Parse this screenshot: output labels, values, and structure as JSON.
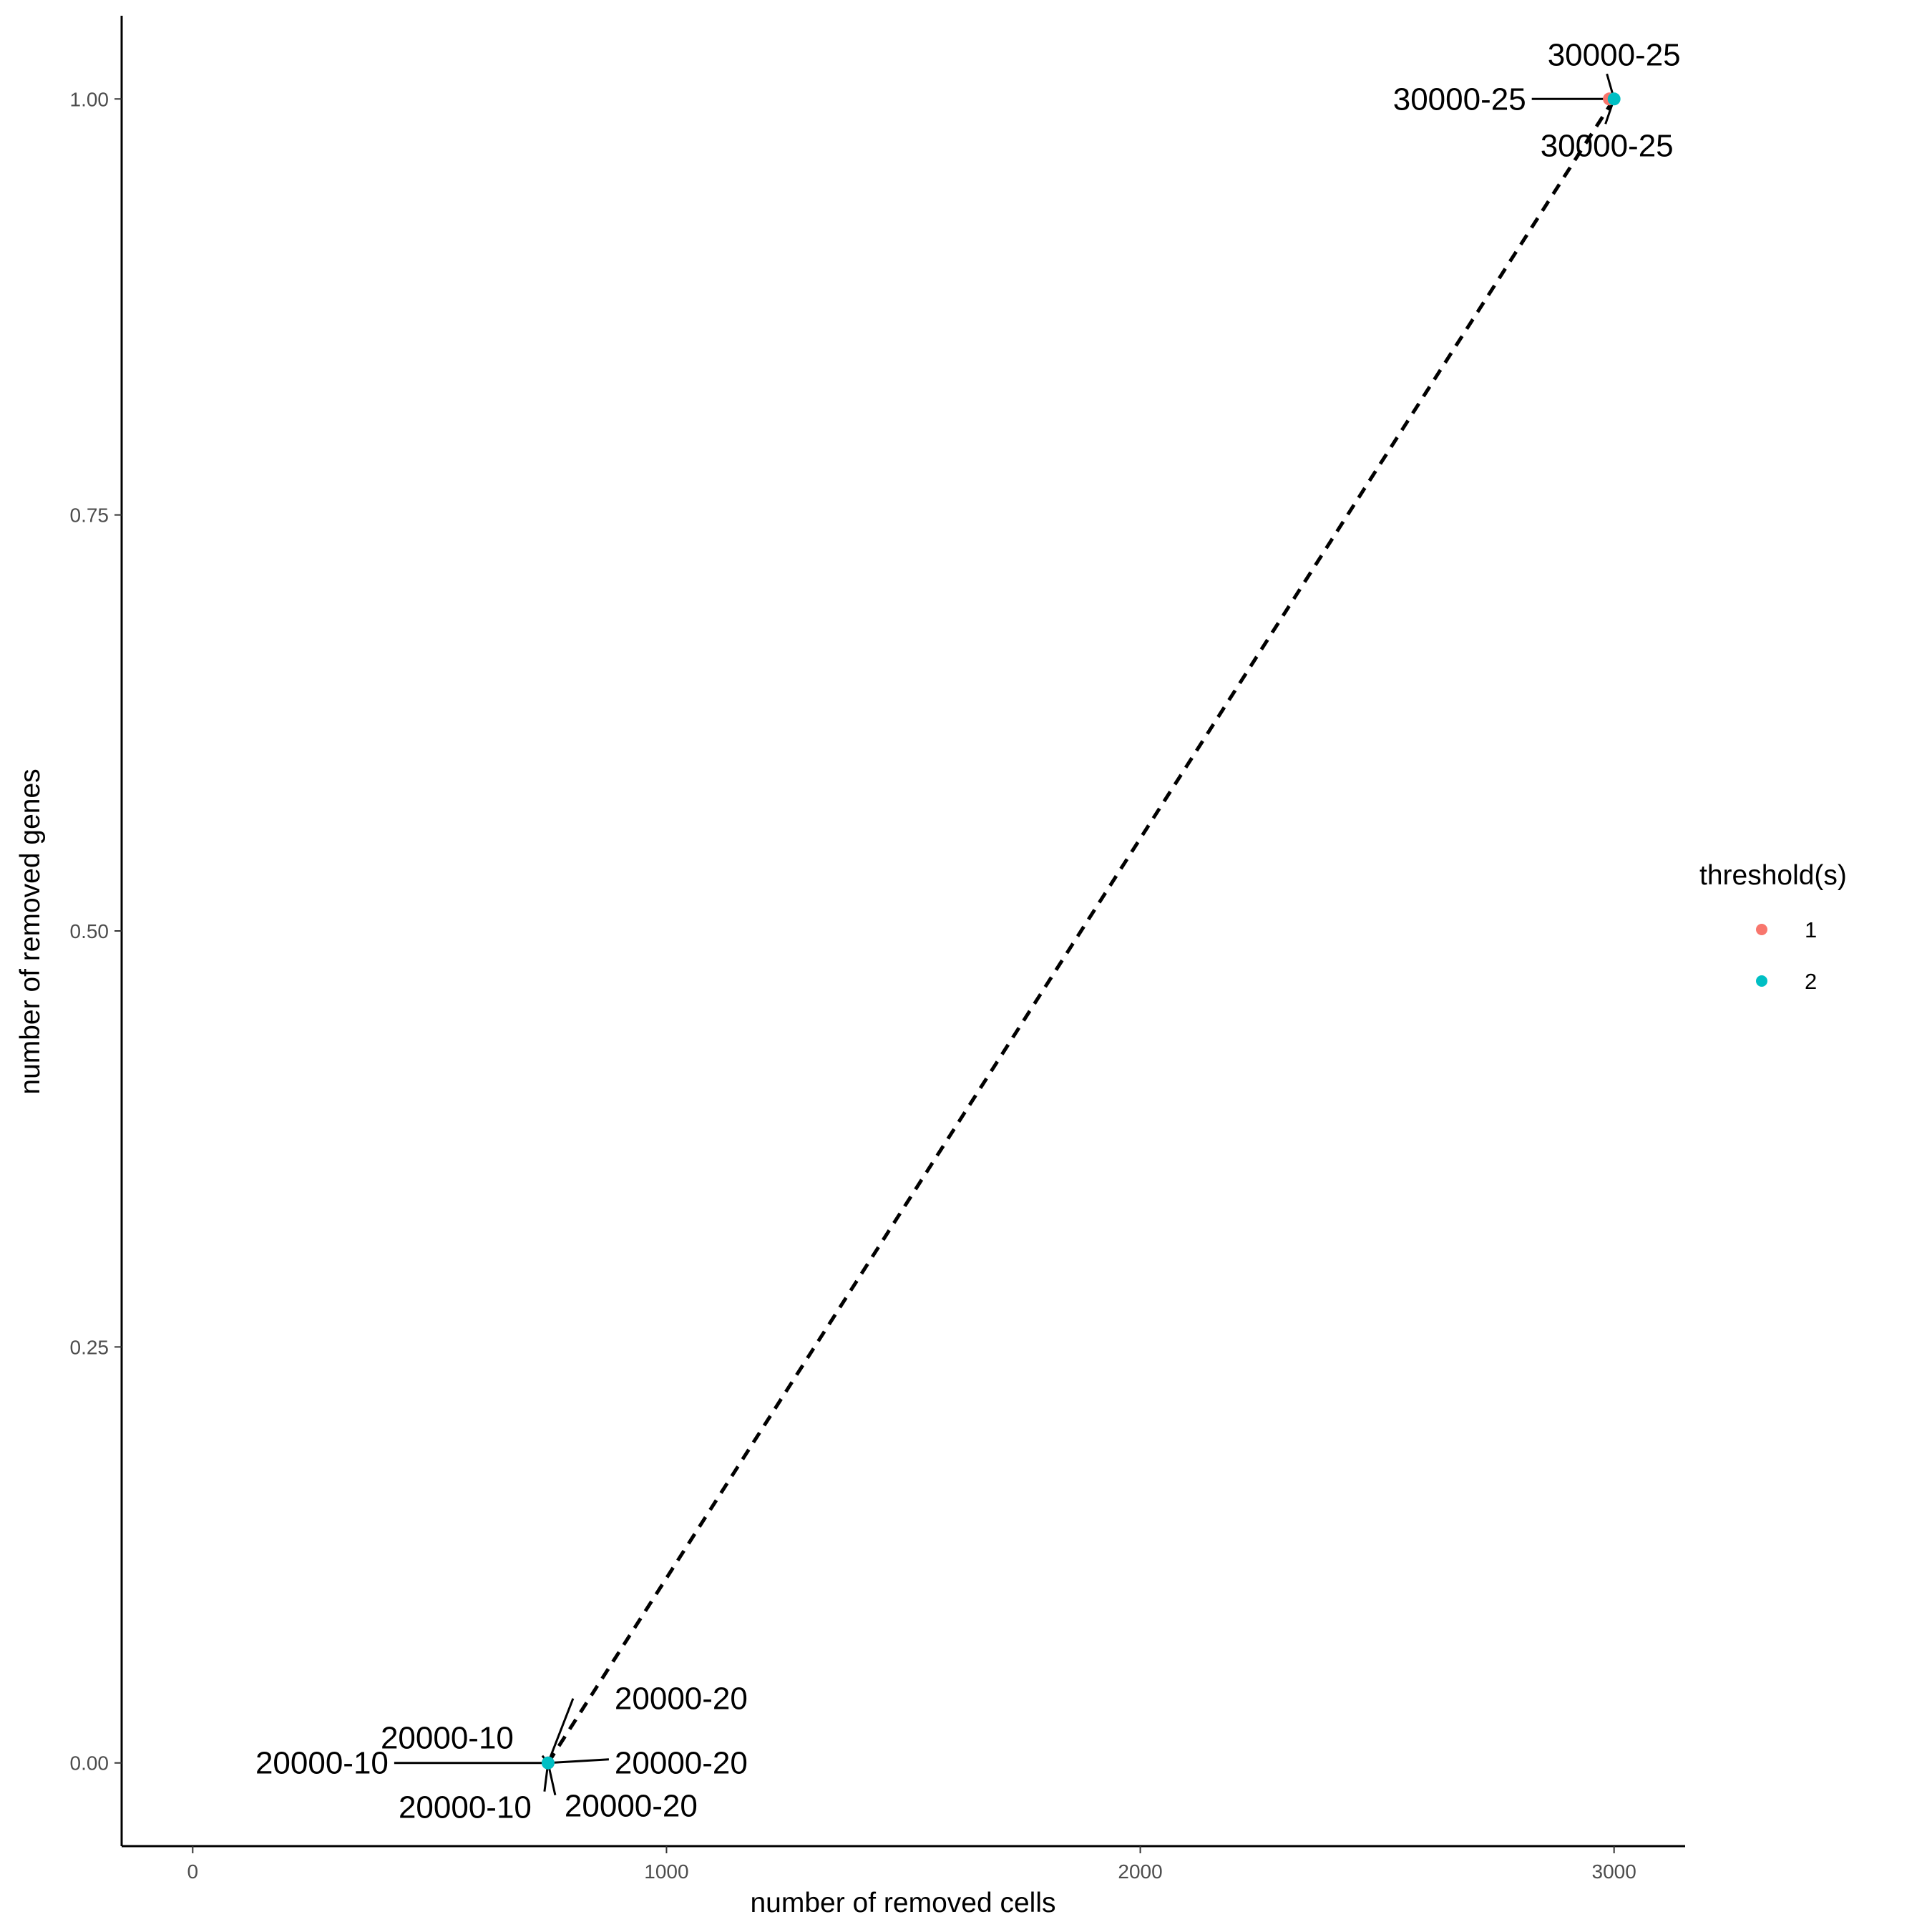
{
  "chart_data": {
    "type": "scatter",
    "xlabel": "number of removed cells",
    "ylabel": "number of removed genes",
    "xlim": [
      -150,
      3150
    ],
    "ylim": [
      -0.05,
      1.05
    ],
    "xticks": [
      0,
      1000,
      2000,
      3000
    ],
    "xtick_labels": [
      "0",
      "1000",
      "2000",
      "3000"
    ],
    "yticks": [
      0,
      0.25,
      0.5,
      0.75,
      1
    ],
    "ytick_labels": [
      "0.00",
      "0.25",
      "0.50",
      "0.75",
      "1.00"
    ],
    "grid": false,
    "legend": {
      "title": "threshold(s)",
      "placement": "right",
      "entries": [
        {
          "label": "1",
          "color": "#F8766D"
        },
        {
          "label": "2",
          "color": "#00BFC4"
        }
      ]
    },
    "series": [
      {
        "name": "1",
        "color": "#F8766D",
        "points": [
          {
            "x": 750,
            "y": 0,
            "label": "20000-10"
          },
          {
            "x": 2990,
            "y": 1,
            "label": "30000-25"
          }
        ]
      },
      {
        "name": "2",
        "color": "#00BFC4",
        "points": [
          {
            "x": 750,
            "y": 0,
            "label": "20000-20"
          },
          {
            "x": 3000,
            "y": 1,
            "label": "30000-25"
          }
        ]
      }
    ],
    "text_labels": [
      {
        "text": "20000-10",
        "x": 750,
        "y": 0
      },
      {
        "text": "20000-10",
        "x": 750,
        "y": 0
      },
      {
        "text": "20000-10",
        "x": 750,
        "y": 0
      },
      {
        "text": "20000-20",
        "x": 750,
        "y": 0
      },
      {
        "text": "20000-20",
        "x": 750,
        "y": 0
      },
      {
        "text": "20000-20",
        "x": 750,
        "y": 0
      },
      {
        "text": "30000-25",
        "x": 3000,
        "y": 1
      },
      {
        "text": "30000-25",
        "x": 3000,
        "y": 1
      },
      {
        "text": "30000-25",
        "x": 3000,
        "y": 1
      }
    ],
    "dashed_line": [
      {
        "x": 750,
        "y": 0
      },
      {
        "x": 3000,
        "y": 1
      }
    ]
  }
}
